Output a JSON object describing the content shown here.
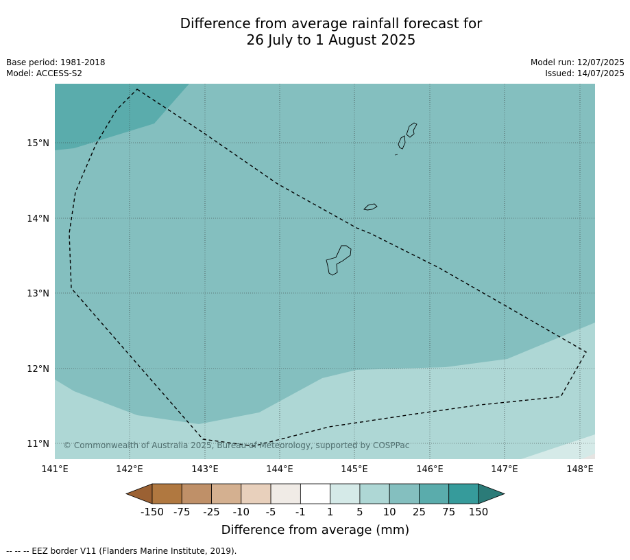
{
  "title": {
    "line1": "Difference from average rainfall forecast for",
    "line2": "26 July to 1 August 2025"
  },
  "meta_left": {
    "line1": "Base period: 1981-2018",
    "line2": "Model: ACCESS-S2"
  },
  "meta_right": {
    "line1": "Model run: 12/07/2025",
    "line2": "Issued: 14/07/2025"
  },
  "map": {
    "lon_ticks": [
      "141°E",
      "142°E",
      "143°E",
      "144°E",
      "145°E",
      "146°E",
      "147°E",
      "148°E"
    ],
    "lat_ticks": [
      "15°N",
      "14°N",
      "13°N",
      "12°N",
      "11°N"
    ],
    "lon_range": [
      141.0,
      148.2
    ],
    "lat_range": [
      10.8,
      15.8
    ],
    "copyright": "© Commonwealth of Australia 2025, Bureau of Meteorology, supported by COSPPac"
  },
  "colorbar": {
    "labels": [
      "-150",
      "-75",
      "-25",
      "-10",
      "-5",
      "-1",
      "1",
      "5",
      "10",
      "25",
      "75",
      "150"
    ],
    "colors": [
      "#9b6133",
      "#b07840",
      "#bf9068",
      "#d4b090",
      "#e8d0bc",
      "#f0ebe6",
      "#ffffff",
      "#d5eae8",
      "#aed7d5",
      "#84bfbf",
      "#5aacac",
      "#369b9b",
      "#2b7b78"
    ],
    "title": "Difference from average (mm)"
  },
  "footer": "--  --  -- EEZ border V11 (Flanders Marine Institute, 2019)."
}
